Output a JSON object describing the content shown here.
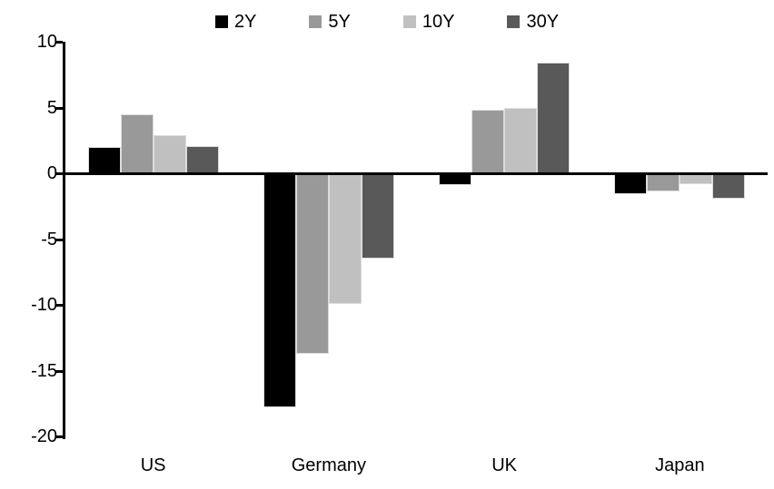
{
  "chart_data": {
    "type": "bar",
    "title": "",
    "xlabel": "",
    "ylabel": "",
    "categories": [
      "US",
      "Germany",
      "UK",
      "Japan"
    ],
    "series": [
      {
        "name": "2Y",
        "color": "#000000",
        "values": [
          2.0,
          -17.8,
          -0.9,
          -1.6
        ]
      },
      {
        "name": "5Y",
        "color": "#999999",
        "values": [
          4.5,
          -13.7,
          4.8,
          -1.4
        ]
      },
      {
        "name": "10Y",
        "color": "#c0c0c0",
        "values": [
          2.9,
          -9.9,
          5.0,
          -0.8
        ]
      },
      {
        "name": "30Y",
        "color": "#595959",
        "values": [
          2.1,
          -6.5,
          8.4,
          -1.9
        ]
      }
    ],
    "y_ticks": [
      10,
      5,
      0,
      -5,
      -10,
      -15,
      -20
    ],
    "ylim": [
      -20,
      10
    ],
    "grid": "off",
    "legend_position": "top-center",
    "axis_color": "#000000",
    "background_color": "#ffffff"
  }
}
